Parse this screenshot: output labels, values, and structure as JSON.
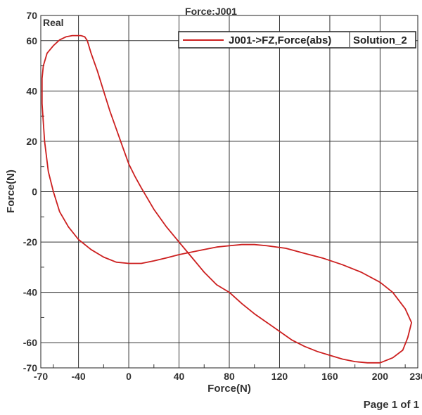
{
  "chart_data": {
    "type": "line",
    "title": "Force:J001",
    "corner_label": "Real",
    "xlabel": "Force(N)",
    "ylabel": "Force(N)",
    "xlim": [
      -70,
      230
    ],
    "ylim": [
      -70,
      70
    ],
    "x_ticks": [
      -70,
      -40,
      0,
      40,
      80,
      120,
      160,
      200,
      230
    ],
    "y_ticks": [
      70,
      60,
      40,
      20,
      0,
      -20,
      -40,
      -60,
      -70
    ],
    "grid": true,
    "legend_position": "top-right",
    "series": [
      {
        "name": "J001->FZ,Force(abs)",
        "legend_suffix": "Solution_2",
        "color": "#cc1f1f",
        "x": [
          -38,
          -35,
          -33,
          -30,
          -25,
          -20,
          -15,
          -10,
          -5,
          0,
          5,
          10,
          20,
          30,
          40,
          50,
          60,
          70,
          80,
          90,
          100,
          110,
          120,
          130,
          140,
          150,
          160,
          170,
          180,
          190,
          200,
          210,
          218,
          222,
          225,
          220,
          210,
          200,
          185,
          170,
          155,
          140,
          125,
          110,
          100,
          90,
          80,
          70,
          60,
          50,
          40,
          30,
          20,
          10,
          0,
          -10,
          -20,
          -30,
          -40,
          -48,
          -55,
          -60,
          -64,
          -67,
          -69,
          -69,
          -68,
          -65,
          -60,
          -55,
          -50,
          -45,
          -40,
          -38
        ],
        "y": [
          62,
          61.5,
          60,
          55,
          48,
          40,
          32,
          25,
          18,
          11,
          6,
          1.5,
          -7,
          -14,
          -20,
          -26,
          -32,
          -37,
          -40,
          -44.5,
          -48.5,
          -52,
          -55.5,
          -59,
          -61.5,
          -63.5,
          -65,
          -66.5,
          -67.5,
          -68,
          -68,
          -66,
          -63,
          -58,
          -52,
          -46.5,
          -40,
          -36,
          -32,
          -29,
          -26.5,
          -24.5,
          -22.5,
          -21.5,
          -21,
          -21,
          -21.5,
          -22,
          -23,
          -24,
          -25,
          -26.3,
          -27.5,
          -28.5,
          -28.5,
          -28,
          -26,
          -23,
          -19,
          -14,
          -8,
          0,
          8,
          20,
          35,
          45,
          50,
          55,
          58,
          60.3,
          61.5,
          62,
          62,
          62
        ]
      }
    ]
  },
  "footer": {
    "page_label": "Page 1 of 1"
  }
}
